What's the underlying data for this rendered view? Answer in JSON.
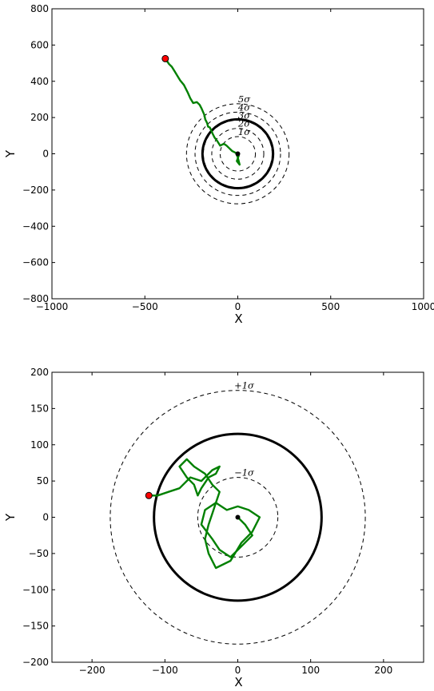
{
  "chart_data": [
    {
      "type": "line",
      "xlabel": "X",
      "ylabel": "Y",
      "xlim": [
        -1000,
        1000
      ],
      "ylim": [
        -800,
        800
      ],
      "xticks": [
        -1000,
        -500,
        0,
        500,
        1000
      ],
      "yticks": [
        -800,
        -600,
        -400,
        -200,
        0,
        200,
        400,
        600,
        800
      ],
      "x_tick_labels": [
        "−1000",
        "−500",
        "0",
        "500",
        "1000"
      ],
      "y_tick_labels": [
        "−800",
        "−600",
        "−400",
        "−200",
        "0",
        "200",
        "400",
        "600",
        "800"
      ],
      "grid": false,
      "center": [
        0,
        0
      ],
      "solid_circle_radius": 190,
      "dashed_circles": [
        {
          "radius": 95,
          "label": "1σ"
        },
        {
          "radius": 140,
          "label": "2σ"
        },
        {
          "radius": 185,
          "label": "3σ"
        },
        {
          "radius": 230,
          "label": "4σ"
        },
        {
          "radius": 276,
          "label": "5σ"
        }
      ],
      "endpoint": [
        -390,
        525
      ],
      "path_color": "#008000",
      "endpoint_color": "#ff0000",
      "path": [
        [
          0,
          0
        ],
        [
          5,
          -10
        ],
        [
          -5,
          -40
        ],
        [
          10,
          -60
        ],
        [
          0,
          -20
        ],
        [
          -10,
          5
        ],
        [
          -30,
          15
        ],
        [
          -45,
          30
        ],
        [
          -60,
          45
        ],
        [
          -75,
          55
        ],
        [
          -95,
          45
        ],
        [
          -110,
          70
        ],
        [
          -125,
          90
        ],
        [
          -135,
          110
        ],
        [
          -150,
          145
        ],
        [
          -160,
          150
        ],
        [
          -165,
          170
        ],
        [
          -175,
          190
        ],
        [
          -180,
          215
        ],
        [
          -195,
          250
        ],
        [
          -205,
          270
        ],
        [
          -220,
          285
        ],
        [
          -240,
          280
        ],
        [
          -255,
          305
        ],
        [
          -270,
          340
        ],
        [
          -290,
          380
        ],
        [
          -310,
          405
        ],
        [
          -325,
          430
        ],
        [
          -340,
          455
        ],
        [
          -355,
          480
        ],
        [
          -370,
          495
        ],
        [
          -380,
          510
        ],
        [
          -390,
          525
        ]
      ]
    },
    {
      "type": "line",
      "xlabel": "X",
      "ylabel": "Y",
      "xlim": [
        -255,
        255
      ],
      "ylim": [
        -200,
        200
      ],
      "xticks": [
        -200,
        -100,
        0,
        100,
        200
      ],
      "yticks": [
        -200,
        -150,
        -100,
        -50,
        0,
        50,
        100,
        150,
        200
      ],
      "x_tick_labels": [
        "−200",
        "−100",
        "0",
        "100",
        "200"
      ],
      "y_tick_labels": [
        "−200",
        "−150",
        "−100",
        "−50",
        "0",
        "50",
        "100",
        "150",
        "200"
      ],
      "grid": false,
      "center": [
        0,
        0
      ],
      "solid_circle_radius": 115,
      "dashed_circles": [
        {
          "radius": 55,
          "label": "−1σ"
        },
        {
          "radius": 175,
          "label": "+1σ"
        }
      ],
      "endpoint": [
        -122,
        30
      ],
      "path_color": "#008000",
      "endpoint_color": "#ff0000",
      "path": [
        [
          0,
          0
        ],
        [
          10,
          -10
        ],
        [
          20,
          -25
        ],
        [
          5,
          -40
        ],
        [
          -10,
          -55
        ],
        [
          -25,
          -45
        ],
        [
          -35,
          -30
        ],
        [
          -50,
          -10
        ],
        [
          -45,
          10
        ],
        [
          -30,
          20
        ],
        [
          -15,
          10
        ],
        [
          0,
          15
        ],
        [
          15,
          10
        ],
        [
          30,
          0
        ],
        [
          20,
          -20
        ],
        [
          5,
          -35
        ],
        [
          -10,
          -60
        ],
        [
          -30,
          -70
        ],
        [
          -40,
          -50
        ],
        [
          -45,
          -30
        ],
        [
          -40,
          -10
        ],
        [
          -35,
          5
        ],
        [
          -30,
          20
        ],
        [
          -25,
          35
        ],
        [
          -35,
          45
        ],
        [
          -45,
          60
        ],
        [
          -60,
          70
        ],
        [
          -70,
          80
        ],
        [
          -80,
          70
        ],
        [
          -70,
          55
        ],
        [
          -60,
          45
        ],
        [
          -55,
          30
        ],
        [
          -50,
          40
        ],
        [
          -40,
          55
        ],
        [
          -30,
          60
        ],
        [
          -25,
          70
        ],
        [
          -35,
          65
        ],
        [
          -50,
          50
        ],
        [
          -65,
          55
        ],
        [
          -80,
          40
        ],
        [
          -95,
          35
        ],
        [
          -110,
          30
        ],
        [
          -122,
          30
        ]
      ]
    }
  ]
}
